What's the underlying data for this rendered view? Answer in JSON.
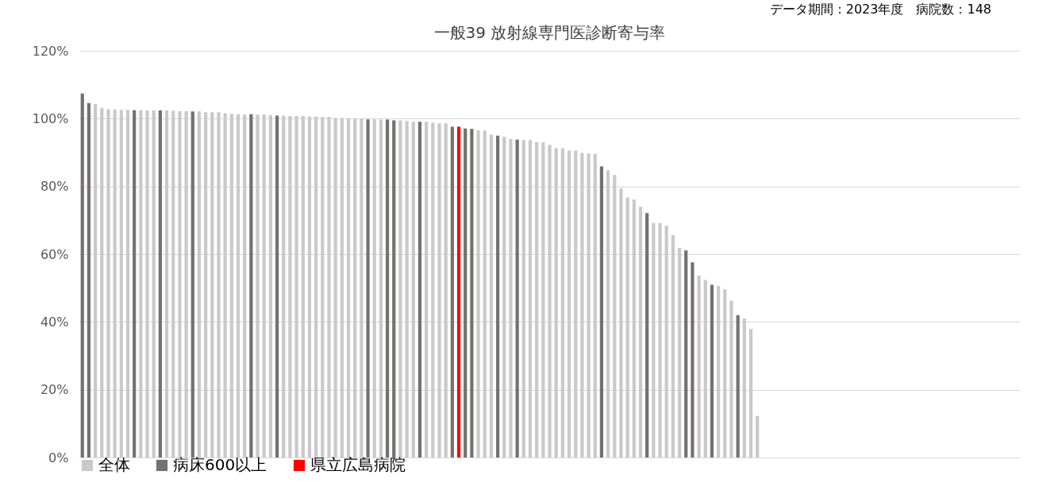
{
  "chart_data": {
    "type": "bar",
    "title": "一般39 放射線専門医診断寄与率",
    "annotations": [
      "データ期間：2023年度　病院数：148"
    ],
    "categories": [
      null,
      null,
      null,
      null,
      null,
      null,
      null,
      null,
      null,
      null,
      null,
      null,
      null,
      null,
      null,
      null,
      null,
      null,
      null,
      null,
      null,
      null,
      null,
      null,
      null,
      null,
      null,
      null,
      null,
      null,
      null,
      null,
      null,
      null,
      null,
      null,
      null,
      null,
      null,
      null,
      null,
      null,
      null,
      null,
      null,
      null,
      null,
      null,
      null,
      null,
      null,
      null,
      null,
      null,
      null,
      null,
      null,
      null,
      null,
      null,
      null,
      null,
      null,
      null,
      null,
      null,
      null,
      null,
      null,
      null,
      null,
      null,
      null,
      null,
      null,
      null,
      null,
      null,
      null,
      null,
      null,
      null,
      null,
      null,
      null,
      null,
      null,
      null,
      null,
      null,
      null,
      null,
      null,
      null,
      null,
      null,
      null,
      null,
      null,
      null,
      null,
      null,
      null,
      null,
      null,
      null,
      null,
      null,
      null,
      null,
      null,
      null,
      null,
      null,
      null,
      null,
      null,
      null,
      null,
      null,
      null,
      null,
      null,
      null,
      null,
      null,
      null,
      null,
      null,
      null,
      null,
      null,
      null,
      null,
      null,
      null,
      null,
      null,
      null,
      null,
      null,
      null,
      null,
      null,
      null
    ],
    "ylim": [
      0,
      120
    ],
    "yticks": [
      {
        "value": 0,
        "label": "0%"
      },
      {
        "value": 20,
        "label": "20%"
      },
      {
        "value": 40,
        "label": "40%"
      },
      {
        "value": 60,
        "label": "60%"
      },
      {
        "value": 80,
        "label": "80%"
      },
      {
        "value": 100,
        "label": "100%"
      },
      {
        "value": 120,
        "label": "120%"
      }
    ],
    "grid": "y",
    "legend": "bottom",
    "series": [
      {
        "name": "全体",
        "color": "#c9c9c9",
        "values": [
          null,
          null,
          104.3,
          103.2,
          102.8,
          102.7,
          102.6,
          102.6,
          null,
          102.5,
          102.4,
          102.4,
          null,
          102.4,
          102.3,
          102.2,
          102.2,
          null,
          102.1,
          101.9,
          101.9,
          101.9,
          101.6,
          101.4,
          101.3,
          101.2,
          null,
          101.2,
          101.2,
          101.1,
          null,
          100.9,
          100.8,
          100.8,
          100.8,
          100.6,
          100.6,
          100.5,
          100.5,
          100.2,
          100.2,
          100.1,
          100.0,
          100.0,
          null,
          99.8,
          99.7,
          null,
          null,
          99.5,
          99.3,
          99.1,
          null,
          99.1,
          98.8,
          98.6,
          98.6,
          null,
          null,
          null,
          null,
          96.5,
          96.5,
          95.3,
          null,
          94.6,
          94.0,
          null,
          93.7,
          93.7,
          93.1,
          93.0,
          92.3,
          91.3,
          91.3,
          90.6,
          90.6,
          89.9,
          89.7,
          89.6,
          null,
          84.8,
          83.4,
          79.4,
          76.7,
          76.1,
          74.0,
          null,
          69.2,
          69.2,
          68.4,
          65.6,
          61.9,
          null,
          null,
          53.7,
          52.4,
          null,
          50.6,
          49.6,
          46.3,
          null,
          41.0,
          37.9,
          12.3,
          null,
          null,
          null,
          null,
          null,
          null,
          null,
          null,
          null,
          null,
          null,
          null,
          null,
          null,
          null,
          null,
          null,
          null,
          null,
          null,
          null,
          null,
          null,
          null,
          null,
          null,
          null,
          null,
          null,
          null,
          null,
          null,
          null,
          null,
          null,
          null,
          null,
          null,
          null,
          null
        ]
      },
      {
        "name": "病床600以上",
        "color": "#767171",
        "values": [
          107.4,
          104.6,
          null,
          null,
          null,
          null,
          null,
          null,
          102.5,
          null,
          null,
          null,
          102.4,
          null,
          null,
          null,
          null,
          102.1,
          null,
          null,
          null,
          null,
          null,
          null,
          null,
          null,
          101.3,
          null,
          null,
          null,
          100.9,
          null,
          null,
          null,
          null,
          null,
          null,
          null,
          null,
          null,
          null,
          null,
          null,
          null,
          99.8,
          null,
          null,
          99.7,
          99.5,
          null,
          null,
          null,
          99.1,
          null,
          null,
          null,
          null,
          97.6,
          null,
          97.1,
          97.0,
          null,
          null,
          null,
          95.0,
          null,
          null,
          93.8,
          null,
          null,
          null,
          null,
          null,
          null,
          null,
          null,
          null,
          null,
          null,
          null,
          85.9,
          null,
          null,
          null,
          null,
          null,
          null,
          72.1,
          null,
          null,
          null,
          null,
          null,
          61.1,
          57.6,
          null,
          null,
          51.0,
          null,
          null,
          null,
          42.0,
          null,
          null,
          null,
          null,
          null,
          null,
          null,
          null,
          null,
          null,
          null,
          null,
          null,
          null,
          null,
          null,
          null,
          null,
          null,
          null,
          null,
          null,
          null,
          null,
          null,
          null,
          null,
          null,
          null,
          null,
          null,
          null,
          null,
          null,
          null,
          null,
          null,
          null,
          null,
          null,
          null,
          null,
          null
        ]
      },
      {
        "name": "県立広島病院",
        "color": "#ff0000",
        "values": [
          null,
          null,
          null,
          null,
          null,
          null,
          null,
          null,
          null,
          null,
          null,
          null,
          null,
          null,
          null,
          null,
          null,
          null,
          null,
          null,
          null,
          null,
          null,
          null,
          null,
          null,
          null,
          null,
          null,
          null,
          null,
          null,
          null,
          null,
          null,
          null,
          null,
          null,
          null,
          null,
          null,
          null,
          null,
          null,
          null,
          null,
          null,
          null,
          null,
          null,
          null,
          null,
          null,
          null,
          null,
          null,
          null,
          null,
          97.6,
          null,
          null,
          null,
          null,
          null,
          null,
          null,
          null,
          null,
          null,
          null,
          null,
          null,
          null,
          null,
          null,
          null,
          null,
          null,
          null,
          null,
          null,
          null,
          null,
          null,
          null,
          null,
          null,
          null,
          null,
          null,
          null,
          null,
          null,
          null,
          null,
          null,
          null,
          null,
          null,
          null,
          null,
          null,
          null,
          null,
          null,
          null,
          null,
          null,
          null,
          null,
          null,
          null,
          null,
          null,
          null,
          null,
          null,
          null,
          null,
          null,
          null,
          null,
          null,
          null,
          null,
          null,
          null,
          null,
          null,
          null,
          null,
          null,
          null,
          null,
          null,
          null,
          null,
          null,
          null,
          null,
          null,
          null,
          null,
          null,
          null
        ]
      }
    ]
  }
}
